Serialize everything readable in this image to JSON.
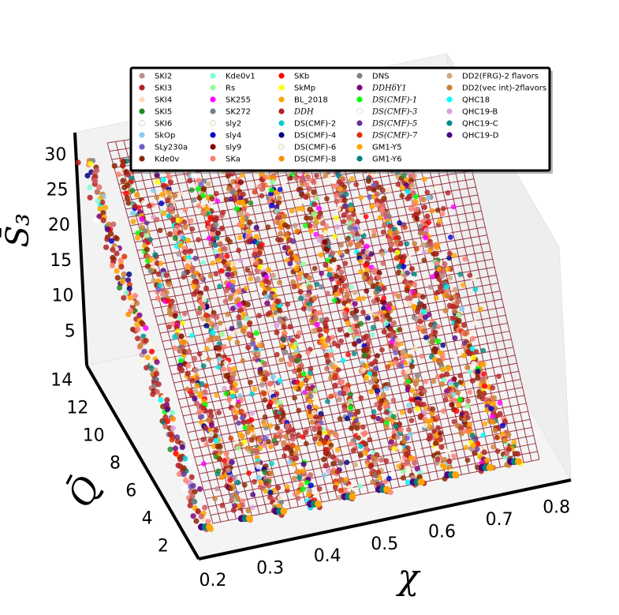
{
  "chart_data": {
    "type": "scatter",
    "projection": "3d",
    "xlabel": "χ",
    "ylabel": "Q̄",
    "zlabel": "S̄₃",
    "x_ticks": [
      "0.2",
      "0.3",
      "0.4",
      "0.5",
      "0.6",
      "0.7",
      "0.8"
    ],
    "y_ticks": [
      "2",
      "4",
      "6",
      "8",
      "10",
      "12",
      "14"
    ],
    "z_ticks": [
      "5",
      "10",
      "15",
      "20",
      "25",
      "30"
    ],
    "xlim": [
      0.2,
      0.85
    ],
    "ylim": [
      1,
      15
    ],
    "zlim": [
      0,
      33
    ],
    "grid": false,
    "legend_placement": "top",
    "fit_surface": {
      "style": "wireframe",
      "color": "#8b1a2b"
    },
    "legend": [
      {
        "label": "SKI2",
        "color": "#bc8f8f"
      },
      {
        "label": "SKI3",
        "color": "#b22222"
      },
      {
        "label": "SKI4",
        "color": "#ffdab9"
      },
      {
        "label": "SKI5",
        "color": "#228b22"
      },
      {
        "label": "SKI6",
        "color": "#fffaf0"
      },
      {
        "label": "SkOp",
        "color": "#87ceeb"
      },
      {
        "label": "SLy230a",
        "color": "#6a5acd"
      },
      {
        "label": "Kde0v",
        "color": "#8b2500"
      },
      {
        "label": "Kde0v1",
        "color": "#7fffd4"
      },
      {
        "label": "Rs",
        "color": "#98fb98"
      },
      {
        "label": "SK255",
        "color": "#ff00ff"
      },
      {
        "label": "SK272",
        "color": "#708090"
      },
      {
        "label": "sly2",
        "color": "#fff8dc"
      },
      {
        "label": "sly4",
        "color": "#0000cd"
      },
      {
        "label": "sly9",
        "color": "#800000"
      },
      {
        "label": "SKa",
        "color": "#fa8072"
      },
      {
        "label": "SKb",
        "color": "#ff0000"
      },
      {
        "label": "SkMp",
        "color": "#ffff00"
      },
      {
        "label": "BL_2018",
        "color": "#ffa500"
      },
      {
        "label": "DDH",
        "color": "#b22222",
        "math": true
      },
      {
        "label": "DS(CMF)-2",
        "color": "#00ced1"
      },
      {
        "label": "DS(CMF)-4",
        "color": "#000080"
      },
      {
        "label": "DS(CMF)-6",
        "color": "#fff8dc"
      },
      {
        "label": "DS(CMF)-8",
        "color": "#ff8c00"
      },
      {
        "label": "DNS",
        "color": "#808080"
      },
      {
        "label": "DDHδY1",
        "color": "#800080",
        "math": true
      },
      {
        "label": "DS(CMF)-1",
        "color": "#00ff00",
        "math": true
      },
      {
        "label": "DS(CMF)-3",
        "color": "#ffffff",
        "math": true
      },
      {
        "label": "DS(CMF)-5",
        "color": "#663399",
        "math": true
      },
      {
        "label": "DS(CMF)-7",
        "color": "#dd3300",
        "math": true
      },
      {
        "label": "GM1-Y5",
        "color": "#ffa500"
      },
      {
        "label": "GM1-Y6",
        "color": "#008080"
      },
      {
        "label": "DD2(FRG)-2 flavors",
        "color": "#d2a679"
      },
      {
        "label": "DD2(vec int)-2flavors",
        "color": "#cd7f32"
      },
      {
        "label": "QHC18",
        "color": "#00ffff"
      },
      {
        "label": "QHC19-B",
        "color": "#dda0dd"
      },
      {
        "label": "QHC19-C",
        "color": "#008b8b"
      },
      {
        "label": "QHC19-D",
        "color": "#4b0082"
      }
    ],
    "tracks": [
      {
        "x_start": 0.2,
        "x_end": 0.22,
        "y_start": 14,
        "y_end": 2,
        "z_start": 31,
        "z_end": 2
      },
      {
        "x_start": 0.26,
        "x_end": 0.29,
        "y_start": 14,
        "y_end": 2,
        "z_start": 30,
        "z_end": 2
      },
      {
        "x_start": 0.32,
        "x_end": 0.35,
        "y_start": 14,
        "y_end": 2,
        "z_start": 29,
        "z_end": 2
      },
      {
        "x_start": 0.38,
        "x_end": 0.41,
        "y_start": 14,
        "y_end": 2,
        "z_start": 28,
        "z_end": 2
      },
      {
        "x_start": 0.44,
        "x_end": 0.47,
        "y_start": 14,
        "y_end": 2,
        "z_start": 27,
        "z_end": 2
      },
      {
        "x_start": 0.5,
        "x_end": 0.53,
        "y_start": 14,
        "y_end": 2,
        "z_start": 26,
        "z_end": 2
      },
      {
        "x_start": 0.56,
        "x_end": 0.59,
        "y_start": 14,
        "y_end": 2,
        "z_start": 25,
        "z_end": 2
      },
      {
        "x_start": 0.62,
        "x_end": 0.65,
        "y_start": 14,
        "y_end": 2,
        "z_start": 24,
        "z_end": 2
      },
      {
        "x_start": 0.68,
        "x_end": 0.71,
        "y_start": 14,
        "y_end": 2,
        "z_start": 23,
        "z_end": 2
      },
      {
        "x_start": 0.74,
        "x_end": 0.76,
        "y_start": 14,
        "y_end": 2,
        "z_start": 22,
        "z_end": 2
      }
    ]
  }
}
